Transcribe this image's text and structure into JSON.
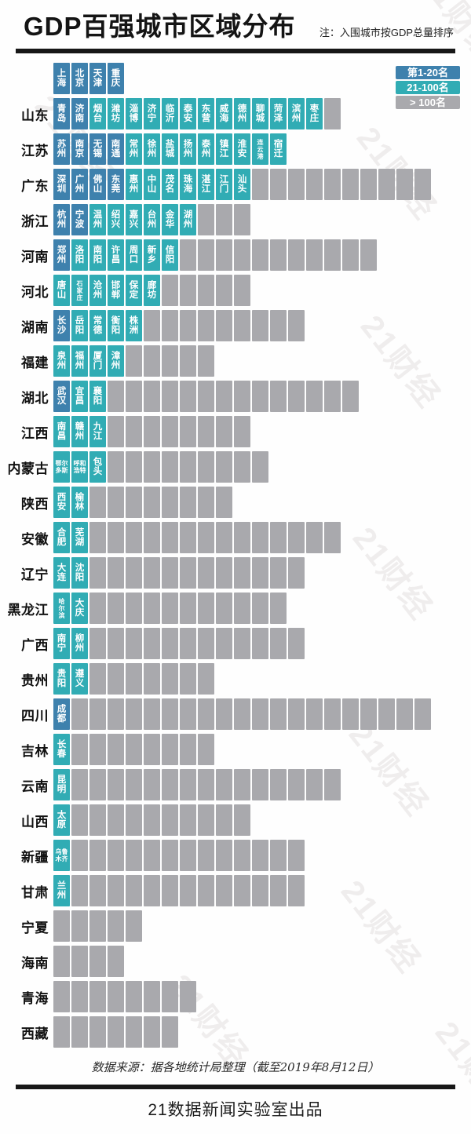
{
  "header": {
    "title": "GDP百强城市区域分布",
    "note": "注：入围城市按GDP总量排序"
  },
  "footer": {
    "source": "数据来源：据各地统计局整理（截至2019年8月12日）",
    "producer": "21数据新闻实验室出品"
  },
  "watermark_text": "21财经",
  "chart_data": {
    "type": "heatmap",
    "title": "GDP百强城市区域分布",
    "note": "注：入围城市按GDP总量排序",
    "legend": [
      "第1-20名",
      "21-100名",
      "> 100名"
    ],
    "tier_colors": {
      "top20": "#3e81ad",
      "rank21_100": "#31acb4",
      "over100": "#a9a9ad"
    },
    "municipalities": [
      "上海",
      "北京",
      "天津",
      "重庆"
    ],
    "rows": [
      {
        "province": "山东",
        "top20": [
          "青岛",
          "济南"
        ],
        "rank21_100": [
          "烟台",
          "潍坊",
          "淄博",
          "济宁",
          "临沂",
          "泰安",
          "东营",
          "威海",
          "德州",
          "聊城",
          "菏泽",
          "滨州",
          "枣庄"
        ],
        "over100_count": 1
      },
      {
        "province": "江苏",
        "top20": [
          "苏州",
          "南京",
          "无锡",
          "南通"
        ],
        "rank21_100": [
          "常州",
          "徐州",
          "盐城",
          "扬州",
          "泰州",
          "镇江",
          "淮安",
          "连云港",
          "宿迁"
        ],
        "over100_count": 0
      },
      {
        "province": "广东",
        "top20": [
          "深圳",
          "广州",
          "佛山",
          "东莞"
        ],
        "rank21_100": [
          "惠州",
          "中山",
          "茂名",
          "珠海",
          "湛江",
          "江门",
          "汕头"
        ],
        "over100_count": 10
      },
      {
        "province": "浙江",
        "top20": [
          "杭州",
          "宁波"
        ],
        "rank21_100": [
          "温州",
          "绍兴",
          "嘉兴",
          "台州",
          "金华",
          "湖州"
        ],
        "over100_count": 3
      },
      {
        "province": "河南",
        "top20": [
          "郑州"
        ],
        "rank21_100": [
          "洛阳",
          "南阳",
          "许昌",
          "周口",
          "新乡",
          "信阳"
        ],
        "over100_count": 11
      },
      {
        "province": "河北",
        "top20": [],
        "rank21_100": [
          "唐山",
          "石家庄",
          "沧州",
          "邯郸",
          "保定",
          "廊坊"
        ],
        "over100_count": 5
      },
      {
        "province": "湖南",
        "top20": [
          "长沙"
        ],
        "rank21_100": [
          "岳阳",
          "常德",
          "衡阳",
          "株洲"
        ],
        "over100_count": 9
      },
      {
        "province": "福建",
        "top20": [],
        "rank21_100": [
          "泉州",
          "福州",
          "厦门",
          "漳州"
        ],
        "over100_count": 5
      },
      {
        "province": "湖北",
        "top20": [
          "武汉"
        ],
        "rank21_100": [
          "宜昌",
          "襄阳"
        ],
        "over100_count": 14
      },
      {
        "province": "江西",
        "top20": [],
        "rank21_100": [
          "南昌",
          "赣州",
          "九江"
        ],
        "over100_count": 8
      },
      {
        "province": "内蒙古",
        "top20": [],
        "rank21_100": [
          "鄂尔多斯",
          "呼和浩特",
          "包头"
        ],
        "over100_count": 9
      },
      {
        "province": "陕西",
        "top20": [],
        "rank21_100": [
          "西安",
          "榆林"
        ],
        "over100_count": 8
      },
      {
        "province": "安徽",
        "top20": [],
        "rank21_100": [
          "合肥",
          "芜湖"
        ],
        "over100_count": 14
      },
      {
        "province": "辽宁",
        "top20": [],
        "rank21_100": [
          "大连",
          "沈阳"
        ],
        "over100_count": 12
      },
      {
        "province": "黑龙江",
        "top20": [],
        "rank21_100": [
          "哈尔滨",
          "大庆"
        ],
        "over100_count": 11
      },
      {
        "province": "广西",
        "top20": [],
        "rank21_100": [
          "南宁",
          "柳州"
        ],
        "over100_count": 12
      },
      {
        "province": "贵州",
        "top20": [],
        "rank21_100": [
          "贵阳",
          "遵义"
        ],
        "over100_count": 7
      },
      {
        "province": "四川",
        "top20": [
          "成都"
        ],
        "rank21_100": [],
        "over100_count": 20
      },
      {
        "province": "吉林",
        "top20": [],
        "rank21_100": [
          "长春"
        ],
        "over100_count": 8
      },
      {
        "province": "云南",
        "top20": [],
        "rank21_100": [
          "昆明"
        ],
        "over100_count": 15
      },
      {
        "province": "山西",
        "top20": [],
        "rank21_100": [
          "太原"
        ],
        "over100_count": 10
      },
      {
        "province": "新疆",
        "top20": [],
        "rank21_100": [
          "乌鲁木齐"
        ],
        "over100_count": 13
      },
      {
        "province": "甘肃",
        "top20": [],
        "rank21_100": [
          "兰州"
        ],
        "over100_count": 13
      },
      {
        "province": "宁夏",
        "top20": [],
        "rank21_100": [],
        "over100_count": 5
      },
      {
        "province": "海南",
        "top20": [],
        "rank21_100": [],
        "over100_count": 4
      },
      {
        "province": "青海",
        "top20": [],
        "rank21_100": [],
        "over100_count": 8
      },
      {
        "province": "西藏",
        "top20": [],
        "rank21_100": [],
        "over100_count": 7
      }
    ]
  }
}
